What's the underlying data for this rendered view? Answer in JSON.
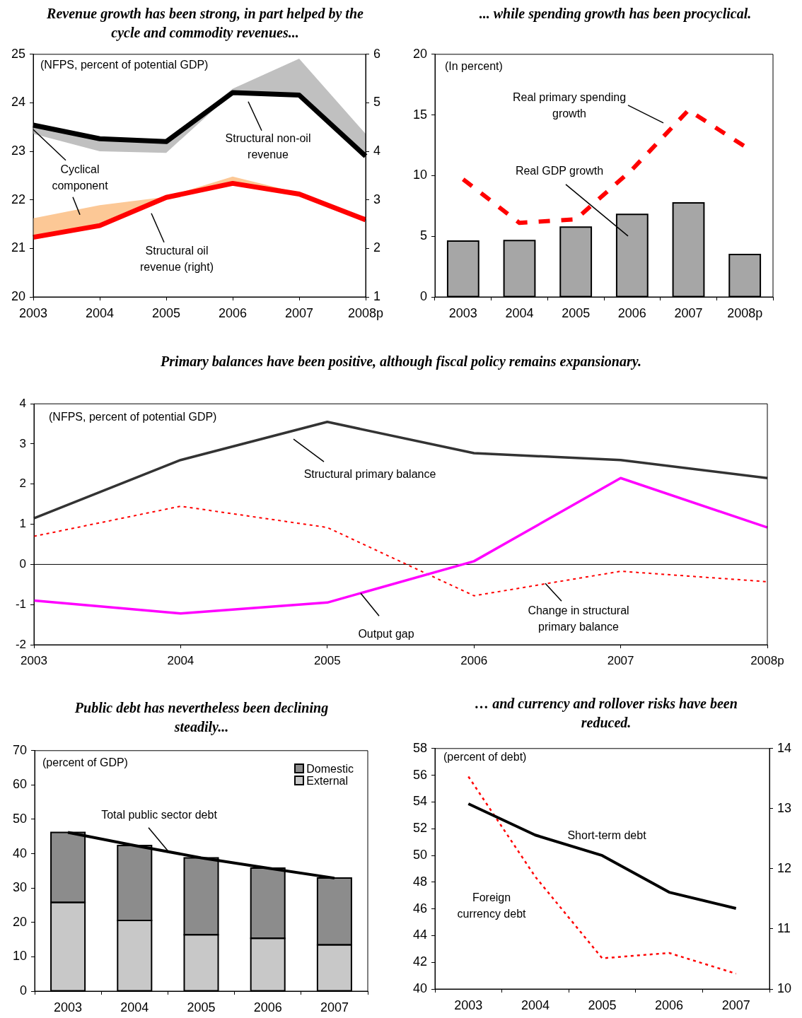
{
  "chart_data": [
    {
      "type": "line",
      "title": "Revenue growth has been strong, in part helped by the cycle and commodity revenues...",
      "subtitle": "(NFPS, percent of potential GDP)",
      "categories": [
        "2003",
        "2004",
        "2005",
        "2006",
        "2007",
        "2008p"
      ],
      "series": [
        {
          "name": "Structural non-oil revenue",
          "color": "#000000",
          "values": [
            23.54,
            23.26,
            23.2,
            24.21,
            24.16,
            22.9
          ],
          "lower": [
            23.36,
            23.0,
            22.97,
            24.21,
            24.16,
            22.9
          ],
          "upper": [
            23.54,
            23.26,
            23.2,
            24.29,
            24.91,
            23.36
          ]
        },
        {
          "name": "Structural oil revenue (right)",
          "color": "#ff0000",
          "axis": "y2",
          "values": [
            2.23,
            2.47,
            3.05,
            3.34,
            3.12,
            2.59
          ],
          "lower": [
            2.23,
            2.47,
            3.05,
            3.34,
            3.12,
            2.59
          ],
          "upper": [
            2.62,
            2.89,
            3.06,
            3.48,
            3.14,
            2.59
          ]
        }
      ],
      "annotations": [
        {
          "text": "Cyclical component",
          "x": "2003",
          "y": 23.45
        }
      ],
      "ylim": [
        20,
        25
      ],
      "yticks": [
        20,
        21,
        22,
        23,
        24,
        25
      ],
      "y2lim": [
        1,
        6
      ],
      "y2ticks": [
        1,
        2,
        3,
        4,
        5,
        6
      ],
      "grid": false,
      "legend": false,
      "marker": "none"
    },
    {
      "type": "bar",
      "title": "... while spending growth has been procyclical.",
      "subtitle": "(In percent)",
      "categories": [
        "2003",
        "2004",
        "2005",
        "2006",
        "2007",
        "2008p"
      ],
      "series": [
        {
          "name": "Real GDP growth",
          "color": "#a6a6a6",
          "values": [
            4.6,
            4.65,
            5.75,
            6.8,
            7.75,
            3.5
          ]
        },
        {
          "name": "Real primary spending growth",
          "type": "line",
          "color": "#ff0000",
          "line_style": "dashed",
          "values": [
            9.7,
            6.1,
            6.4,
            10.5,
            15.4,
            12.4
          ]
        }
      ],
      "ylim": [
        0,
        20
      ],
      "yticks": [
        0,
        5,
        10,
        15,
        20
      ],
      "grid": false,
      "legend": false,
      "marker": "none"
    },
    {
      "type": "line",
      "title": "Primary balances have been positive, although fiscal policy remains expansionary.",
      "subtitle": "(NFPS, percent of potential GDP)",
      "categories": [
        "2003",
        "2004",
        "2005",
        "2006",
        "2007",
        "2008p"
      ],
      "series": [
        {
          "name": "Structural primary balance",
          "color": "#333333",
          "values": [
            1.15,
            2.6,
            3.55,
            2.77,
            2.6,
            2.15
          ]
        },
        {
          "name": "Output gap",
          "color": "#ff00ff",
          "values": [
            -0.9,
            -1.22,
            -0.95,
            0.08,
            2.15,
            0.92
          ]
        },
        {
          "name": "Change in structural primary balance",
          "color": "#ff0000",
          "line_style": "dotted",
          "values": [
            0.7,
            1.45,
            0.92,
            -0.78,
            -0.17,
            -0.43
          ]
        }
      ],
      "ref_lines": [
        {
          "axis": "y",
          "value": 0
        }
      ],
      "ylim": [
        -2,
        4
      ],
      "yticks": [
        -2,
        -1,
        0,
        1,
        2,
        3,
        4
      ],
      "grid": false,
      "legend": false,
      "marker": "none"
    },
    {
      "type": "bar",
      "stacked": true,
      "title": "Public debt has nevertheless been declining steadily...",
      "subtitle": "(percent of GDP)",
      "categories": [
        "2003",
        "2004",
        "2005",
        "2006",
        "2007"
      ],
      "series": [
        {
          "name": "External",
          "color": "#c8c8c8",
          "values": [
            25.8,
            20.6,
            16.4,
            15.4,
            13.5
          ]
        },
        {
          "name": "Domestic",
          "color": "#8c8c8c",
          "values": [
            20.4,
            21.8,
            22.4,
            20.4,
            19.4
          ]
        },
        {
          "name": "Total public sector debt",
          "type": "line",
          "color": "#000000",
          "values": [
            46.2,
            42.4,
            38.8,
            35.8,
            32.9
          ]
        }
      ],
      "ylim": [
        0,
        70
      ],
      "yticks": [
        0,
        10,
        20,
        30,
        40,
        50,
        60,
        70
      ],
      "grid": false,
      "legend": "top right",
      "marker": "none"
    },
    {
      "type": "line",
      "title": "… and currency and rollover risks have been reduced.",
      "subtitle": "(percent of debt)",
      "categories": [
        "2003",
        "2004",
        "2005",
        "2006",
        "2007"
      ],
      "series": [
        {
          "name": "Short-term debt",
          "color": "#000000",
          "axis": "y2",
          "values": [
            13.08,
            12.56,
            12.22,
            11.61,
            11.34
          ]
        },
        {
          "name": "Foreign currency debt",
          "color": "#ff0000",
          "line_style": "dotted",
          "values": [
            55.9,
            48.4,
            42.3,
            42.7,
            41.15
          ]
        }
      ],
      "ylim": [
        40,
        58
      ],
      "yticks": [
        40,
        42,
        44,
        46,
        48,
        50,
        52,
        54,
        56,
        58
      ],
      "y2lim": [
        10,
        14
      ],
      "y2ticks": [
        10,
        11,
        12,
        13,
        14
      ],
      "grid": false,
      "legend": false,
      "marker": "none"
    }
  ]
}
